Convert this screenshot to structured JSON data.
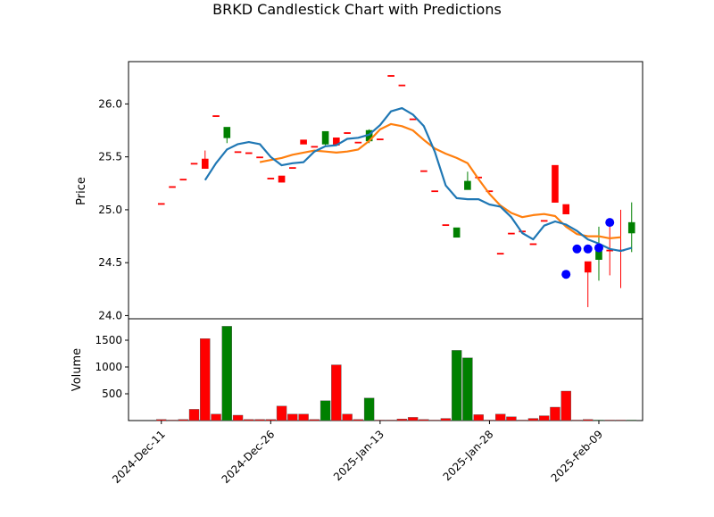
{
  "chart_data": {
    "type": "candlestick",
    "title": "BRKD Candlestick Chart with Predictions",
    "price_ylabel": "Price",
    "volume_ylabel": "Volume",
    "price_ylim": [
      23.97,
      26.4
    ],
    "price_yticks": [
      24.0,
      24.5,
      25.0,
      25.5,
      26.0
    ],
    "price_ytick_labels": [
      "24.0",
      "24.5",
      "25.0",
      "25.5",
      "26.0"
    ],
    "volume_ylim": [
      0,
      1900
    ],
    "volume_yticks": [
      500,
      1000,
      1500
    ],
    "volume_ytick_labels": [
      "500",
      "1000",
      "1500"
    ],
    "x_range": [
      -3,
      44
    ],
    "x_ticks": [
      0,
      10,
      20,
      30,
      40
    ],
    "x_tick_labels": [
      "2024-Dec-11",
      "2024-Dec-26",
      "2025-Jan-13",
      "2025-Jan-28",
      "2025-Feb-09"
    ],
    "colors": {
      "up": "#008000",
      "down": "#ff0000",
      "ma_short": "#1f77b4",
      "ma_long": "#ff7f0e",
      "prediction": "#0000ff"
    },
    "candles": [
      {
        "o": 25.06,
        "h": 25.06,
        "l": 25.06,
        "c": 25.06,
        "v": 20,
        "up": false
      },
      {
        "o": 25.22,
        "h": 25.22,
        "l": 25.22,
        "c": 25.22,
        "v": 10,
        "up": false
      },
      {
        "o": 25.29,
        "h": 25.29,
        "l": 25.29,
        "c": 25.29,
        "v": 20,
        "up": false
      },
      {
        "o": 25.44,
        "h": 25.44,
        "l": 25.44,
        "c": 25.44,
        "v": 210,
        "up": false
      },
      {
        "o": 25.48,
        "h": 25.56,
        "l": 25.39,
        "c": 25.39,
        "v": 1530,
        "up": false
      },
      {
        "o": 25.89,
        "h": 25.89,
        "l": 25.89,
        "c": 25.89,
        "v": 120,
        "up": false
      },
      {
        "o": 25.68,
        "h": 25.78,
        "l": 25.63,
        "c": 25.78,
        "v": 1760,
        "up": true
      },
      {
        "o": 25.55,
        "h": 25.55,
        "l": 25.55,
        "c": 25.55,
        "v": 100,
        "up": false
      },
      {
        "o": 25.54,
        "h": 25.54,
        "l": 25.54,
        "c": 25.54,
        "v": 20,
        "up": false
      },
      {
        "o": 25.5,
        "h": 25.5,
        "l": 25.5,
        "c": 25.5,
        "v": 20,
        "up": false
      },
      {
        "o": 25.3,
        "h": 25.3,
        "l": 25.3,
        "c": 25.3,
        "v": 20,
        "up": false
      },
      {
        "o": 25.32,
        "h": 25.32,
        "l": 25.26,
        "c": 25.26,
        "v": 270,
        "up": false
      },
      {
        "o": 25.4,
        "h": 25.4,
        "l": 25.4,
        "c": 25.4,
        "v": 120,
        "up": false
      },
      {
        "o": 25.66,
        "h": 25.66,
        "l": 25.62,
        "c": 25.62,
        "v": 120,
        "up": false
      },
      {
        "o": 25.6,
        "h": 25.6,
        "l": 25.6,
        "c": 25.6,
        "v": 20,
        "up": false
      },
      {
        "o": 25.62,
        "h": 25.74,
        "l": 25.61,
        "c": 25.74,
        "v": 370,
        "up": true
      },
      {
        "o": 25.68,
        "h": 25.68,
        "l": 25.61,
        "c": 25.61,
        "v": 1040,
        "up": false
      },
      {
        "o": 25.73,
        "h": 25.73,
        "l": 25.73,
        "c": 25.73,
        "v": 120,
        "up": false
      },
      {
        "o": 25.64,
        "h": 25.64,
        "l": 25.64,
        "c": 25.64,
        "v": 20,
        "up": false
      },
      {
        "o": 25.65,
        "h": 25.76,
        "l": 25.63,
        "c": 25.75,
        "v": 420,
        "up": true
      },
      {
        "o": 25.67,
        "h": 25.67,
        "l": 25.67,
        "c": 25.67,
        "v": 10,
        "up": false
      },
      {
        "o": 26.27,
        "h": 26.27,
        "l": 26.27,
        "c": 26.27,
        "v": 10,
        "up": false
      },
      {
        "o": 26.18,
        "h": 26.18,
        "l": 26.18,
        "c": 26.18,
        "v": 30,
        "up": false
      },
      {
        "o": 25.86,
        "h": 25.86,
        "l": 25.86,
        "c": 25.86,
        "v": 60,
        "up": false
      },
      {
        "o": 25.37,
        "h": 25.37,
        "l": 25.37,
        "c": 25.37,
        "v": 20,
        "up": false
      },
      {
        "o": 25.18,
        "h": 25.18,
        "l": 25.18,
        "c": 25.18,
        "v": 10,
        "up": false
      },
      {
        "o": 24.86,
        "h": 24.86,
        "l": 24.86,
        "c": 24.86,
        "v": 40,
        "up": false
      },
      {
        "o": 24.74,
        "h": 24.83,
        "l": 24.74,
        "c": 24.83,
        "v": 1310,
        "up": true
      },
      {
        "o": 25.19,
        "h": 25.36,
        "l": 25.19,
        "c": 25.27,
        "v": 1170,
        "up": true
      },
      {
        "o": 25.31,
        "h": 25.31,
        "l": 25.31,
        "c": 25.31,
        "v": 110,
        "up": false
      },
      {
        "o": 25.18,
        "h": 25.18,
        "l": 25.18,
        "c": 25.18,
        "v": 10,
        "up": false
      },
      {
        "o": 24.59,
        "h": 24.59,
        "l": 24.59,
        "c": 24.59,
        "v": 120,
        "up": false
      },
      {
        "o": 24.78,
        "h": 24.78,
        "l": 24.78,
        "c": 24.78,
        "v": 70,
        "up": false
      },
      {
        "o": 24.8,
        "h": 24.8,
        "l": 24.8,
        "c": 24.8,
        "v": 10,
        "up": false
      },
      {
        "o": 24.68,
        "h": 24.68,
        "l": 24.68,
        "c": 24.68,
        "v": 40,
        "up": false
      },
      {
        "o": 24.9,
        "h": 24.9,
        "l": 24.9,
        "c": 24.9,
        "v": 90,
        "up": false
      },
      {
        "o": 25.42,
        "h": 25.42,
        "l": 25.07,
        "c": 25.07,
        "v": 250,
        "up": false
      },
      {
        "o": 25.05,
        "h": 25.05,
        "l": 24.96,
        "c": 24.96,
        "v": 550,
        "up": false
      },
      {
        "o": 24.65,
        "h": 24.65,
        "l": 24.65,
        "c": 24.65,
        "v": 10,
        "up": false
      },
      {
        "o": 24.51,
        "h": 24.51,
        "l": 24.08,
        "c": 24.41,
        "v": 20,
        "up": false
      },
      {
        "o": 24.53,
        "h": 24.84,
        "l": 24.33,
        "c": 24.61,
        "v": 10,
        "up": true
      },
      {
        "o": 24.62,
        "h": 24.87,
        "l": 24.38,
        "c": 24.62,
        "v": 10,
        "up": false
      },
      {
        "o": 24.62,
        "h": 25.0,
        "l": 24.26,
        "c": 24.62,
        "v": 10,
        "up": false
      },
      {
        "o": 24.78,
        "h": 25.07,
        "l": 24.6,
        "c": 24.88,
        "v": 10,
        "up": true
      }
    ],
    "ma_short": [
      [
        4,
        25.28
      ],
      [
        5,
        25.44
      ],
      [
        6,
        25.57
      ],
      [
        7,
        25.62
      ],
      [
        8,
        25.64
      ],
      [
        9,
        25.62
      ],
      [
        10,
        25.5
      ],
      [
        11,
        25.42
      ],
      [
        12,
        25.44
      ],
      [
        13,
        25.45
      ],
      [
        14,
        25.55
      ],
      [
        15,
        25.6
      ],
      [
        16,
        25.61
      ],
      [
        17,
        25.67
      ],
      [
        18,
        25.68
      ],
      [
        19,
        25.71
      ],
      [
        20,
        25.8
      ],
      [
        21,
        25.93
      ],
      [
        22,
        25.96
      ],
      [
        23,
        25.9
      ],
      [
        24,
        25.79
      ],
      [
        25,
        25.55
      ],
      [
        26,
        25.23
      ],
      [
        27,
        25.11
      ],
      [
        28,
        25.1
      ],
      [
        29,
        25.1
      ],
      [
        30,
        25.05
      ],
      [
        31,
        25.03
      ],
      [
        32,
        24.93
      ],
      [
        33,
        24.78
      ],
      [
        34,
        24.72
      ],
      [
        35,
        24.85
      ],
      [
        36,
        24.89
      ],
      [
        37,
        24.86
      ],
      [
        38,
        24.8
      ],
      [
        39,
        24.72
      ],
      [
        40,
        24.68
      ],
      [
        41,
        24.63
      ],
      [
        42,
        24.61
      ],
      [
        43,
        24.64
      ]
    ],
    "ma_long": [
      [
        9,
        25.45
      ],
      [
        10,
        25.47
      ],
      [
        11,
        25.49
      ],
      [
        12,
        25.52
      ],
      [
        13,
        25.54
      ],
      [
        14,
        25.56
      ],
      [
        15,
        25.55
      ],
      [
        16,
        25.54
      ],
      [
        17,
        25.55
      ],
      [
        18,
        25.57
      ],
      [
        19,
        25.65
      ],
      [
        20,
        25.76
      ],
      [
        21,
        25.81
      ],
      [
        22,
        25.79
      ],
      [
        23,
        25.75
      ],
      [
        24,
        25.66
      ],
      [
        25,
        25.58
      ],
      [
        26,
        25.53
      ],
      [
        27,
        25.49
      ],
      [
        28,
        25.44
      ],
      [
        29,
        25.29
      ],
      [
        30,
        25.15
      ],
      [
        31,
        25.04
      ],
      [
        32,
        24.97
      ],
      [
        33,
        24.93
      ],
      [
        34,
        24.95
      ],
      [
        35,
        24.96
      ],
      [
        36,
        24.94
      ],
      [
        37,
        24.84
      ],
      [
        38,
        24.77
      ],
      [
        39,
        24.75
      ],
      [
        40,
        24.75
      ],
      [
        41,
        24.73
      ],
      [
        42,
        24.74
      ]
    ],
    "predictions": [
      [
        37,
        24.39
      ],
      [
        38,
        24.63
      ],
      [
        39,
        24.63
      ],
      [
        40,
        24.64
      ],
      [
        41,
        24.88
      ]
    ]
  }
}
